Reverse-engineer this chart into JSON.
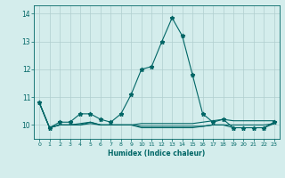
{
  "xlabel": "Humidex (Indice chaleur)",
  "xlim": [
    -0.5,
    23.5
  ],
  "ylim": [
    9.5,
    14.3
  ],
  "yticks": [
    10,
    11,
    12,
    13,
    14
  ],
  "xticks": [
    0,
    1,
    2,
    3,
    4,
    5,
    6,
    7,
    8,
    9,
    10,
    11,
    12,
    13,
    14,
    15,
    16,
    17,
    18,
    19,
    20,
    21,
    22,
    23
  ],
  "bg_color": "#d4edec",
  "grid_color": "#b0cece",
  "line_color": "#006666",
  "lines": [
    {
      "x": [
        0,
        1,
        2,
        3,
        4,
        5,
        6,
        7,
        8,
        9,
        10,
        11,
        12,
        13,
        14,
        15,
        16,
        17,
        18,
        19,
        20,
        21,
        22,
        23
      ],
      "y": [
        10.8,
        9.9,
        10.1,
        10.1,
        10.4,
        10.4,
        10.2,
        10.1,
        10.4,
        11.1,
        12.0,
        12.1,
        13.0,
        13.85,
        13.2,
        11.8,
        10.4,
        10.1,
        10.2,
        9.9,
        9.9,
        9.9,
        9.9,
        10.1
      ],
      "marker": "*",
      "markersize": 3.5
    },
    {
      "x": [
        0,
        1,
        2,
        3,
        4,
        5,
        6,
        7,
        8,
        9,
        10,
        11,
        12,
        13,
        14,
        15,
        16,
        17,
        18,
        19,
        20,
        21,
        22,
        23
      ],
      "y": [
        10.8,
        9.9,
        10.0,
        10.0,
        10.05,
        10.1,
        10.0,
        10.0,
        10.0,
        10.0,
        10.05,
        10.05,
        10.05,
        10.05,
        10.05,
        10.05,
        10.1,
        10.15,
        10.2,
        10.15,
        10.15,
        10.15,
        10.15,
        10.15
      ],
      "marker": null,
      "markersize": 0
    },
    {
      "x": [
        0,
        1,
        2,
        3,
        4,
        5,
        6,
        7,
        8,
        9,
        10,
        11,
        12,
        13,
        14,
        15,
        16,
        17,
        18,
        19,
        20,
        21,
        22,
        23
      ],
      "y": [
        10.8,
        9.9,
        10.0,
        10.0,
        10.0,
        10.1,
        10.0,
        10.0,
        10.0,
        10.0,
        9.9,
        9.9,
        9.9,
        9.9,
        9.9,
        9.9,
        9.95,
        10.0,
        10.0,
        10.0,
        10.0,
        10.0,
        10.0,
        10.05
      ],
      "marker": null,
      "markersize": 0
    },
    {
      "x": [
        0,
        1,
        2,
        3,
        4,
        5,
        6,
        7,
        8,
        9,
        10,
        11,
        12,
        13,
        14,
        15,
        16,
        17,
        18,
        19,
        20,
        21,
        22,
        23
      ],
      "y": [
        10.8,
        9.9,
        10.0,
        10.0,
        10.0,
        10.05,
        10.0,
        10.0,
        10.0,
        10.0,
        9.95,
        9.95,
        9.95,
        9.95,
        9.95,
        9.95,
        9.95,
        10.0,
        10.0,
        9.9,
        9.9,
        9.9,
        9.9,
        10.05
      ],
      "marker": null,
      "markersize": 0
    }
  ]
}
